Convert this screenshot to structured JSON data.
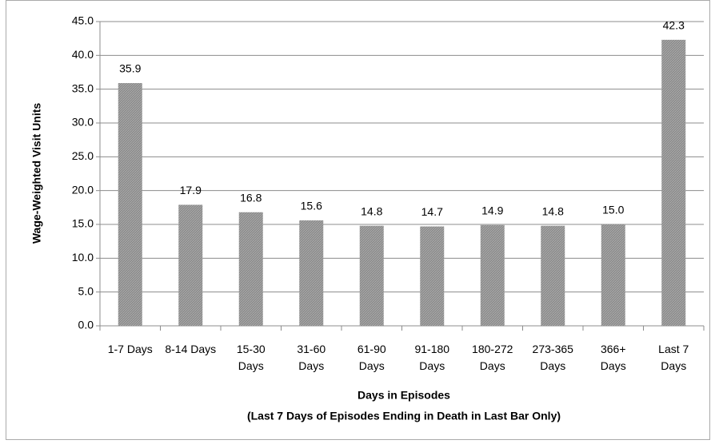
{
  "chart_data": {
    "type": "bar",
    "ylabel": "Wage-Weighted Visit Units",
    "xlabel": [
      "Days in Episodes",
      "(Last 7 Days of Episodes Ending in Death in Last Bar Only)"
    ],
    "categories": [
      "1-7 Days",
      "8-14 Days",
      "15-30 Days",
      "31-60 Days",
      "61-90 Days",
      "91-180 Days",
      "180-272 Days",
      "273-365 Days",
      "366+ Days",
      "Last 7 Days"
    ],
    "values": [
      35.9,
      17.9,
      16.8,
      15.6,
      14.8,
      14.7,
      14.9,
      14.8,
      15.0,
      42.3
    ],
    "value_labels": [
      "35.9",
      "17.9",
      "16.8",
      "15.6",
      "14.8",
      "14.7",
      "14.9",
      "14.8",
      "15.0",
      "42.3"
    ],
    "color": "#8a8a8a",
    "ylim": [
      0,
      45
    ],
    "yticks": [
      {
        "value": 0,
        "label": "0.0"
      },
      {
        "value": 5,
        "label": "5.0"
      },
      {
        "value": 10,
        "label": "10.0"
      },
      {
        "value": 15,
        "label": "15.0"
      },
      {
        "value": 20,
        "label": "20.0"
      },
      {
        "value": 25,
        "label": "25.0"
      },
      {
        "value": 30,
        "label": "30.0"
      },
      {
        "value": 35,
        "label": "35.0"
      },
      {
        "value": 40,
        "label": "40.0"
      },
      {
        "value": 45,
        "label": "45.0"
      }
    ],
    "grid": true
  }
}
